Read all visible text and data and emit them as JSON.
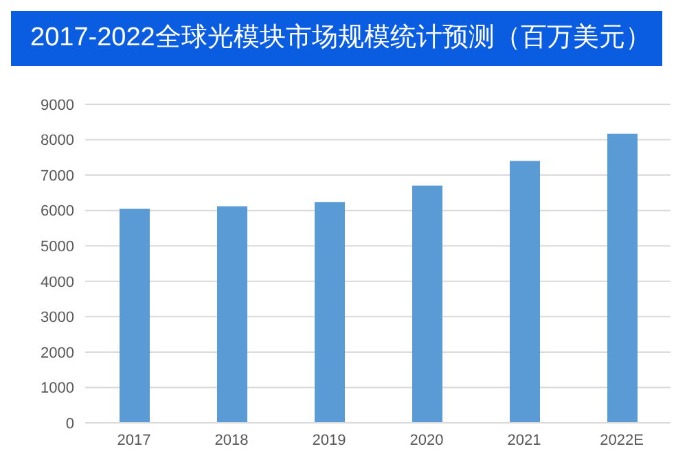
{
  "chart_data": {
    "type": "bar",
    "title": "2017-2022全球光模块市场规模统计预测（百万美元）",
    "categories": [
      "2017",
      "2018",
      "2019",
      "2020",
      "2021",
      "2022E"
    ],
    "values": [
      6050,
      6120,
      6240,
      6700,
      7400,
      8170
    ],
    "color": "#5b9bd5",
    "ylim": [
      0,
      9000
    ],
    "yticks": [
      0,
      1000,
      2000,
      3000,
      4000,
      5000,
      6000,
      7000,
      8000,
      9000
    ],
    "grid": "y"
  }
}
